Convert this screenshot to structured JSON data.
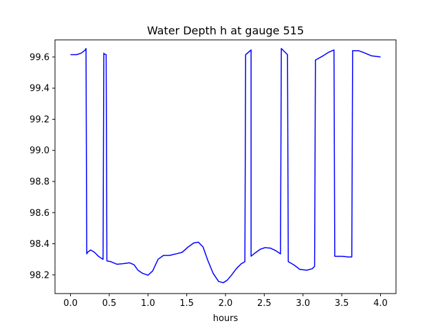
{
  "chart_data": {
    "type": "line",
    "title": "Water Depth h at gauge 515",
    "xlabel": "hours",
    "ylabel": "",
    "xlim": [
      -0.2,
      4.2
    ],
    "ylim": [
      98.08,
      99.71
    ],
    "xticks": [
      0.0,
      0.5,
      1.0,
      1.5,
      2.0,
      2.5,
      3.0,
      3.5,
      4.0
    ],
    "xtick_labels": [
      "0.0",
      "0.5",
      "1.0",
      "1.5",
      "2.0",
      "2.5",
      "3.0",
      "3.5",
      "4.0"
    ],
    "yticks": [
      98.2,
      98.4,
      98.6,
      98.8,
      99.0,
      99.2,
      99.4,
      99.6
    ],
    "ytick_labels": [
      "98.2",
      "98.4",
      "98.6",
      "98.8",
      "99.0",
      "99.2",
      "99.4",
      "99.6"
    ],
    "grid": false,
    "series": [
      {
        "color": "#0000ff",
        "x": [
          0.0,
          0.08,
          0.14,
          0.19,
          0.2,
          0.21,
          0.22,
          0.26,
          0.31,
          0.36,
          0.42,
          0.43,
          0.43,
          0.46,
          0.47,
          0.47,
          0.52,
          0.6,
          0.68,
          0.76,
          0.82,
          0.87,
          0.93,
          1.0,
          1.06,
          1.13,
          1.2,
          1.28,
          1.36,
          1.44,
          1.52,
          1.59,
          1.65,
          1.71,
          1.77,
          1.84,
          1.91,
          1.97,
          2.02,
          2.08,
          2.14,
          2.2,
          2.25,
          2.26,
          2.33,
          2.33,
          2.38,
          2.45,
          2.51,
          2.58,
          2.65,
          2.71,
          2.72,
          2.8,
          2.81,
          2.88,
          2.96,
          3.05,
          3.12,
          3.15,
          3.16,
          3.25,
          3.33,
          3.4,
          3.41,
          3.5,
          3.58,
          3.63,
          3.64,
          3.72,
          3.8,
          3.88,
          4.0
        ],
        "y": [
          99.615,
          99.615,
          99.625,
          99.645,
          99.655,
          98.335,
          98.345,
          98.36,
          98.345,
          98.32,
          98.3,
          99.625,
          99.62,
          99.615,
          98.29,
          98.29,
          98.285,
          98.268,
          98.272,
          98.278,
          98.265,
          98.23,
          98.21,
          98.198,
          98.225,
          98.3,
          98.325,
          98.325,
          98.335,
          98.345,
          98.38,
          98.405,
          98.41,
          98.38,
          98.295,
          98.21,
          98.158,
          98.15,
          98.165,
          98.2,
          98.24,
          98.27,
          98.285,
          99.615,
          99.645,
          98.32,
          98.34,
          98.365,
          98.375,
          98.372,
          98.355,
          98.335,
          99.655,
          99.615,
          98.285,
          98.265,
          98.235,
          98.23,
          98.24,
          98.255,
          99.58,
          99.605,
          99.63,
          99.645,
          98.32,
          98.32,
          98.315,
          98.315,
          99.64,
          99.64,
          99.625,
          99.608,
          99.6
        ]
      }
    ]
  }
}
